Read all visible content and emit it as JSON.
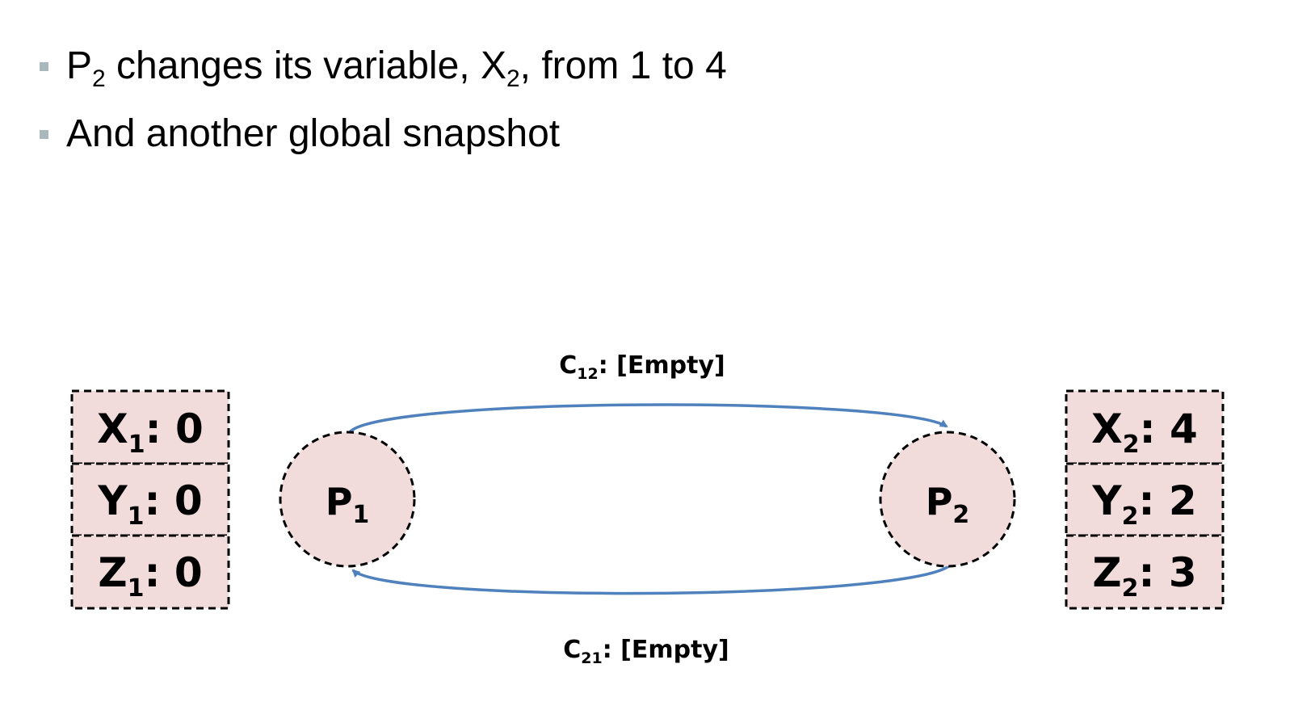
{
  "bullets": [
    {
      "segments": [
        {
          "text": "P"
        },
        {
          "sub": "2"
        },
        {
          "text": " changes its variable, X"
        },
        {
          "sub": "2"
        },
        {
          "text": ", from 1 to 4"
        }
      ]
    },
    {
      "segments": [
        {
          "text": "And another global snapshot"
        }
      ]
    }
  ],
  "colors": {
    "state_fill": "#f2dcdb",
    "arrow": "#4f81bd",
    "bullet": "#a9b8bd"
  },
  "process1": {
    "label": "P",
    "label_sub": "1",
    "vars": [
      {
        "name": "X",
        "sub": "1",
        "value": "0"
      },
      {
        "name": "Y",
        "sub": "1",
        "value": "0"
      },
      {
        "name": "Z",
        "sub": "1",
        "value": "0"
      }
    ]
  },
  "process2": {
    "label": "P",
    "label_sub": "2",
    "vars": [
      {
        "name": "X",
        "sub": "2",
        "value": "4"
      },
      {
        "name": "Y",
        "sub": "2",
        "value": "2"
      },
      {
        "name": "Z",
        "sub": "2",
        "value": "3"
      }
    ]
  },
  "channels": {
    "c12": {
      "name": "C",
      "sub": "12",
      "state": ": [Empty]"
    },
    "c21": {
      "name": "C",
      "sub": "21",
      "state": ": [Empty]"
    }
  }
}
